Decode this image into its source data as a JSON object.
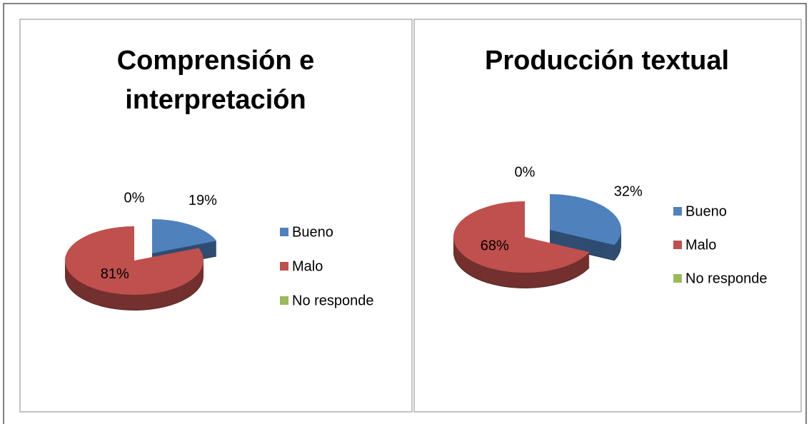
{
  "chart_data": [
    {
      "type": "pie",
      "title": "Comprensión e interpretación",
      "categories": [
        "Bueno",
        "Malo",
        "No responde"
      ],
      "values": [
        19,
        81,
        0
      ],
      "value_labels": [
        "19%",
        "81%",
        "0%"
      ],
      "colors": [
        "#4f81bd",
        "#c0504d",
        "#9bbb59"
      ],
      "legend": "right"
    },
    {
      "type": "pie",
      "title": "Producción textual",
      "categories": [
        "Bueno",
        "Malo",
        "No responde"
      ],
      "values": [
        32,
        68,
        0
      ],
      "value_labels": [
        "32%",
        "68%",
        "0%"
      ],
      "colors": [
        "#4f81bd",
        "#c0504d",
        "#9bbb59"
      ],
      "legend": "right"
    }
  ]
}
